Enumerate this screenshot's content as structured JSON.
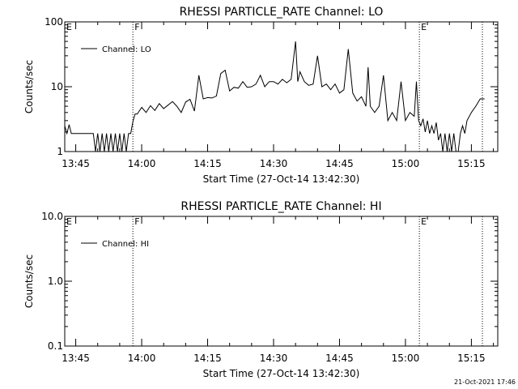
{
  "chart_data": [
    {
      "type": "line",
      "title": "RHESSI PARTICLE_RATE Channel: LO",
      "xlabel": "Start Time (27-Oct-14 13:42:30)",
      "ylabel": "Counts/sec",
      "y_scale": "log",
      "ylim": [
        1,
        100
      ],
      "xlim": [
        "13:42:30",
        "15:21:00"
      ],
      "x_ticks": [
        "13:45",
        "14:00",
        "14:15",
        "14:30",
        "14:45",
        "15:00",
        "15:15"
      ],
      "y_ticks": [
        "1",
        "10",
        "100"
      ],
      "legend": {
        "label": "Channel: LO",
        "placement": "top-left"
      },
      "markers": [
        {
          "time": "13:42:30",
          "label": "E",
          "style": "dotted"
        },
        {
          "time": "13:58:00",
          "label": "F",
          "style": "dotted"
        },
        {
          "time": "15:03:10",
          "label": "E",
          "style": "dotted"
        },
        {
          "time": "15:17:30",
          "label": "",
          "style": "dotted"
        }
      ],
      "series": [
        {
          "name": "Channel: LO",
          "x": [
            "13:42:30",
            "13:43:00",
            "13:43:30",
            "13:44:00",
            "13:44:30",
            "13:45:00",
            "13:46:00",
            "13:47:00",
            "13:48:00",
            "13:49:00",
            "13:49:30",
            "13:50:00",
            "13:50:30",
            "13:51:00",
            "13:51:30",
            "13:52:00",
            "13:52:30",
            "13:53:00",
            "13:53:30",
            "13:54:00",
            "13:54:30",
            "13:55:00",
            "13:55:30",
            "13:56:00",
            "13:56:30",
            "13:57:00",
            "13:57:30",
            "13:58:00",
            "13:58:30",
            "13:59:00",
            "14:00:00",
            "14:01:00",
            "14:02:00",
            "14:03:00",
            "14:04:00",
            "14:05:00",
            "14:06:00",
            "14:07:00",
            "14:08:00",
            "14:09:00",
            "14:10:00",
            "14:11:00",
            "14:12:00",
            "14:13:00",
            "14:14:00",
            "14:15:00",
            "14:16:00",
            "14:17:00",
            "14:18:00",
            "14:19:00",
            "14:20:00",
            "14:21:00",
            "14:22:00",
            "14:23:00",
            "14:24:00",
            "14:25:00",
            "14:26:00",
            "14:27:00",
            "14:28:00",
            "14:29:00",
            "14:30:00",
            "14:31:00",
            "14:32:00",
            "14:33:00",
            "14:34:00",
            "14:35:00",
            "14:35:30",
            "14:36:00",
            "14:37:00",
            "14:38:00",
            "14:39:00",
            "14:40:00",
            "14:41:00",
            "14:42:00",
            "14:43:00",
            "14:43:30",
            "14:44:00",
            "14:45:00",
            "14:46:00",
            "14:47:00",
            "14:48:00",
            "14:49:00",
            "14:50:00",
            "14:51:00",
            "14:51:30",
            "14:52:00",
            "14:53:00",
            "14:54:00",
            "14:55:00",
            "14:56:00",
            "14:57:00",
            "14:58:00",
            "14:59:00",
            "15:00:00",
            "15:01:00",
            "15:02:00",
            "15:02:30",
            "15:03:00",
            "15:03:30",
            "15:04:00",
            "15:04:30",
            "15:05:00",
            "15:05:30",
            "15:06:00",
            "15:06:30",
            "15:07:00",
            "15:07:30",
            "15:08:00",
            "15:08:30",
            "15:09:00",
            "15:09:30",
            "15:10:00",
            "15:10:30",
            "15:11:00",
            "15:11:30",
            "15:12:00",
            "15:12:30",
            "15:13:00",
            "15:13:30",
            "15:14:00",
            "15:15:00",
            "15:16:00",
            "15:17:00",
            "15:18:00"
          ],
          "values": [
            2.5,
            1.9,
            2.6,
            1.9,
            1.9,
            1.9,
            1.9,
            1.9,
            1.9,
            1.9,
            1.0,
            1.9,
            1.0,
            1.9,
            1.0,
            1.9,
            1.0,
            1.9,
            1.0,
            1.9,
            1.0,
            1.9,
            1.0,
            1.9,
            1.0,
            1.9,
            1.9,
            2.9,
            3.8,
            3.8,
            4.8,
            4.0,
            5.1,
            4.3,
            5.5,
            4.6,
            5.2,
            5.9,
            5.0,
            4.0,
            5.8,
            6.4,
            4.2,
            15.0,
            6.5,
            6.8,
            6.7,
            7.2,
            16.0,
            18.0,
            8.6,
            9.8,
            9.5,
            12.0,
            9.8,
            10.0,
            11.0,
            15.0,
            10.0,
            12.0,
            12.0,
            11.0,
            13.0,
            11.5,
            13.0,
            50.0,
            12.0,
            17.0,
            12.0,
            10.5,
            11.0,
            30.0,
            10.0,
            11.0,
            9.0,
            10.0,
            11.0,
            8.0,
            9.0,
            38.0,
            8.0,
            6.0,
            7.0,
            5.0,
            20.0,
            5.0,
            4.0,
            5.0,
            15.0,
            3.0,
            4.0,
            3.0,
            12.0,
            3.0,
            4.0,
            3.5,
            12.0,
            3.0,
            2.5,
            3.2,
            2.0,
            3.0,
            1.9,
            2.5,
            1.9,
            2.8,
            1.5,
            1.9,
            1.0,
            1.9,
            1.0,
            1.9,
            1.0,
            1.9,
            1.0,
            1.0,
            1.9,
            2.5,
            1.9,
            3.0,
            4.0,
            5.0,
            6.5,
            6.5
          ]
        }
      ]
    },
    {
      "type": "line",
      "title": "RHESSI PARTICLE_RATE Channel: HI",
      "xlabel": "Start Time (27-Oct-14 13:42:30)",
      "ylabel": "Counts/sec",
      "y_scale": "log",
      "ylim": [
        0.1,
        10
      ],
      "xlim": [
        "13:42:30",
        "15:21:00"
      ],
      "x_ticks": [
        "13:45",
        "14:00",
        "14:15",
        "14:30",
        "14:45",
        "15:00",
        "15:15"
      ],
      "y_ticks": [
        "0.1",
        "1.0",
        "10.0"
      ],
      "legend": {
        "label": "Channel: HI",
        "placement": "top-left"
      },
      "markers": [
        {
          "time": "13:42:30",
          "label": "E",
          "style": "dotted"
        },
        {
          "time": "13:58:00",
          "label": "F",
          "style": "dotted"
        },
        {
          "time": "15:03:10",
          "label": "E",
          "style": "dotted"
        },
        {
          "time": "15:17:30",
          "label": "",
          "style": "dotted"
        }
      ],
      "series": [
        {
          "name": "Channel: HI",
          "x": [],
          "values": []
        }
      ]
    }
  ],
  "footer": {
    "date_stamp": "21-Oct-2021 17:46"
  }
}
